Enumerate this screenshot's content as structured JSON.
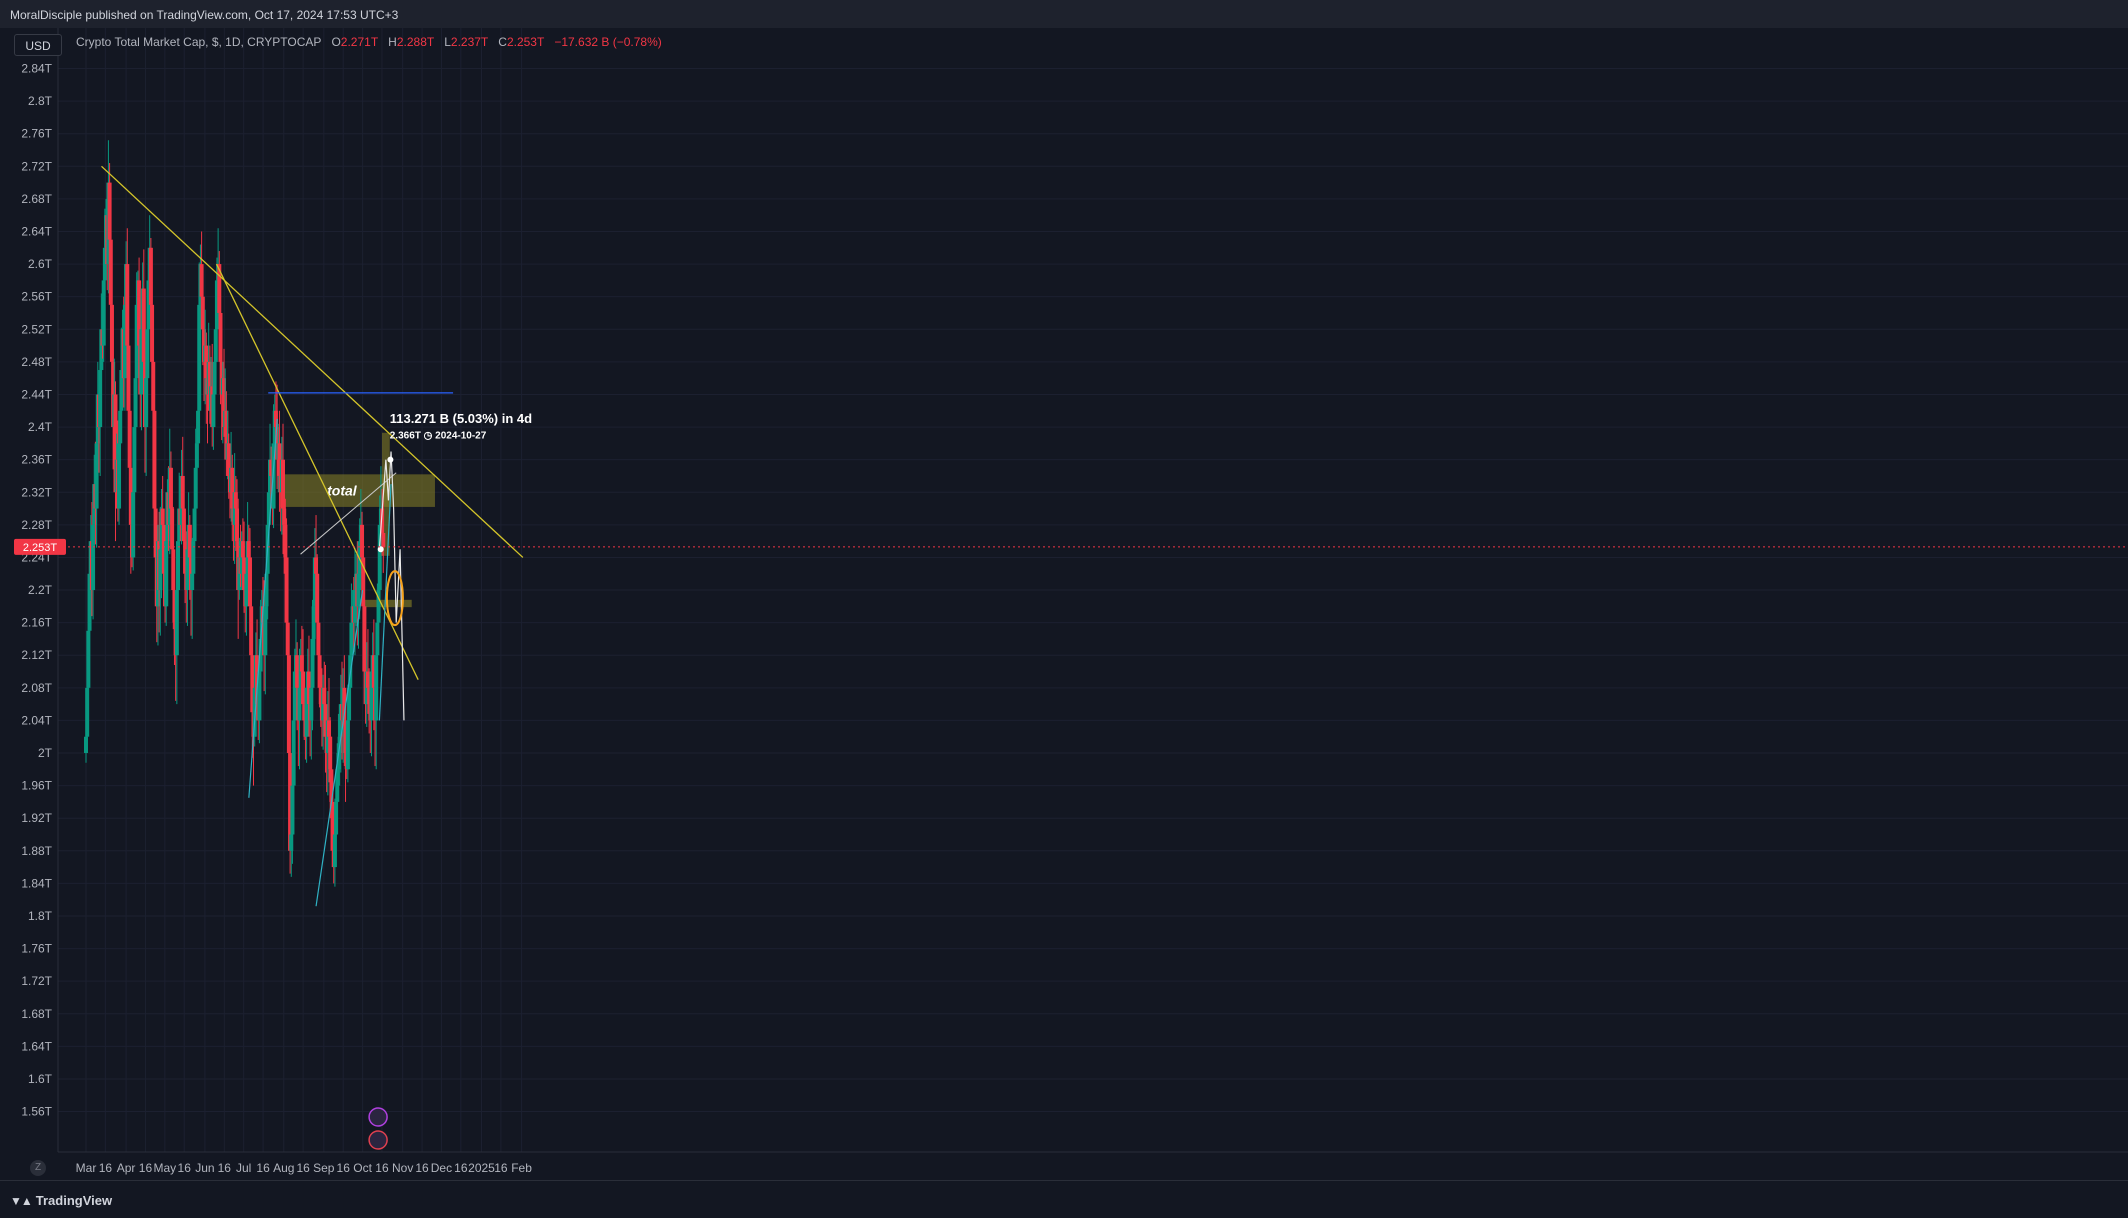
{
  "header": {
    "publisher": "MoralDisciple published on TradingView.com, Oct 17, 2024 17:53 UTC+3"
  },
  "toolbar": {
    "currency": "USD"
  },
  "legend": {
    "symbol": "Crypto Total Market Cap, $, 1D, CRYPTOCAP",
    "open_label": "O",
    "open": "2.271T",
    "high_label": "H",
    "high": "2.288T",
    "low_label": "L",
    "low": "2.237T",
    "close_label": "C",
    "close": "2.253T",
    "change": "−17.632 B (−0.78%)"
  },
  "footer": {
    "brand": "TradingView",
    "zoom_icon": "auto-scale-icon"
  },
  "colors": {
    "background": "#131722",
    "up": "#089981",
    "down": "#f23645",
    "trendline": "#d4c52a",
    "channel": "#2fb2c4",
    "resistance": "#2962ff",
    "zone": "#8a8426",
    "current_price": "#f23645"
  },
  "chart_data": {
    "type": "candlestick",
    "title": "Crypto Total Market Cap, $, 1D, CRYPTOCAP",
    "ylabel": "",
    "xlabel": "",
    "ylim": [
      1.53,
      2.875
    ],
    "yticks": [
      "2.84T",
      "2.8T",
      "2.76T",
      "2.72T",
      "2.68T",
      "2.64T",
      "2.6T",
      "2.56T",
      "2.52T",
      "2.48T",
      "2.44T",
      "2.4T",
      "2.36T",
      "2.32T",
      "2.28T",
      "2.24T",
      "2.2T",
      "2.16T",
      "2.12T",
      "2.08T",
      "2.04T",
      "2T",
      "1.96T",
      "1.92T",
      "1.88T",
      "1.84T",
      "1.8T",
      "1.76T",
      "1.72T",
      "1.68T",
      "1.64T",
      "1.6T",
      "1.56T"
    ],
    "xticks": [
      {
        "label": "Mar",
        "date": "2024-03-01"
      },
      {
        "label": "16",
        "date": "2024-03-16"
      },
      {
        "label": "Apr",
        "date": "2024-04-01"
      },
      {
        "label": "16",
        "date": "2024-04-16"
      },
      {
        "label": "May",
        "date": "2024-05-01"
      },
      {
        "label": "16",
        "date": "2024-05-16"
      },
      {
        "label": "Jun",
        "date": "2024-06-01"
      },
      {
        "label": "16",
        "date": "2024-06-16"
      },
      {
        "label": "Jul",
        "date": "2024-07-01"
      },
      {
        "label": "16",
        "date": "2024-07-16"
      },
      {
        "label": "Aug",
        "date": "2024-08-01"
      },
      {
        "label": "16",
        "date": "2024-08-16"
      },
      {
        "label": "Sep",
        "date": "2024-09-01"
      },
      {
        "label": "16",
        "date": "2024-09-16"
      },
      {
        "label": "Oct",
        "date": "2024-10-01"
      },
      {
        "label": "16",
        "date": "2024-10-16"
      },
      {
        "label": "Nov",
        "date": "2024-11-01"
      },
      {
        "label": "16",
        "date": "2024-11-16"
      },
      {
        "label": "Dec",
        "date": "2024-12-01"
      },
      {
        "label": "16",
        "date": "2024-12-16"
      },
      {
        "label": "2025",
        "date": "2025-01-01"
      },
      {
        "label": "16",
        "date": "2025-01-16"
      },
      {
        "label": "Feb",
        "date": "2025-02-01"
      }
    ],
    "closes": [
      2.02,
      2.08,
      2.15,
      2.22,
      2.26,
      2.2,
      2.28,
      2.33,
      2.3,
      2.38,
      2.44,
      2.4,
      2.47,
      2.52,
      2.5,
      2.58,
      2.62,
      2.66,
      2.6,
      2.7,
      2.63,
      2.55,
      2.48,
      2.4,
      2.44,
      2.32,
      2.36,
      2.3,
      2.38,
      2.42,
      2.47,
      2.52,
      2.46,
      2.55,
      2.6,
      2.5,
      2.42,
      2.35,
      2.28,
      2.24,
      2.32,
      2.4,
      2.46,
      2.55,
      2.58,
      2.5,
      2.44,
      2.52,
      2.57,
      2.48,
      2.4,
      2.46,
      2.52,
      2.58,
      2.62,
      2.55,
      2.48,
      2.42,
      2.3,
      2.24,
      2.18,
      2.26,
      2.2,
      2.25,
      2.3,
      2.28,
      2.22,
      2.18,
      2.26,
      2.32,
      2.28,
      2.35,
      2.3,
      2.25,
      2.2,
      2.16,
      2.12,
      2.2,
      2.26,
      2.3,
      2.28,
      2.34,
      2.3,
      2.26,
      2.22,
      2.2,
      2.25,
      2.28,
      2.24,
      2.2,
      2.22,
      2.26,
      2.3,
      2.35,
      2.38,
      2.42,
      2.55,
      2.6,
      2.56,
      2.52,
      2.48,
      2.5,
      2.46,
      2.44,
      2.48,
      2.42,
      2.45,
      2.4,
      2.44,
      2.48,
      2.52,
      2.58,
      2.6,
      2.54,
      2.48,
      2.44,
      2.46,
      2.4,
      2.42,
      2.36,
      2.38,
      2.34,
      2.32,
      2.35,
      2.3,
      2.28,
      2.32,
      2.3,
      2.26,
      2.2,
      2.24,
      2.22,
      2.26,
      2.24,
      2.2,
      2.18,
      2.22,
      2.26,
      2.24,
      2.18,
      2.12,
      2.05,
      2.02,
      2.08,
      2.12,
      2.06,
      2.04,
      2.1,
      2.14,
      2.18,
      2.16,
      2.12,
      2.18,
      2.22,
      2.28,
      2.32,
      2.36,
      2.34,
      2.3,
      2.38,
      2.42,
      2.4,
      2.36,
      2.38,
      2.34,
      2.32,
      2.36,
      2.3,
      2.28,
      2.24,
      2.16,
      2.12,
      2.0,
      1.88,
      1.9,
      1.96,
      2.04,
      2.1,
      2.12,
      2.08,
      2.04,
      2.08,
      2.12,
      2.1,
      2.06,
      2.04,
      2.02,
      2.08,
      2.1,
      2.06,
      2.04,
      2.08,
      2.14,
      2.18,
      2.24,
      2.22,
      2.16,
      2.12,
      2.08,
      2.06,
      2.04,
      2.08,
      2.06,
      2.02,
      2.0,
      2.04,
      2.02,
      1.98,
      1.94,
      1.88,
      1.86,
      1.9,
      1.94,
      1.98,
      2.0,
      2.02,
      2.06,
      2.04,
      2.08,
      2.04,
      2.0,
      1.98,
      2.04,
      2.08,
      2.12,
      2.16,
      2.18,
      2.16,
      2.2,
      2.22,
      2.18,
      2.22,
      2.26,
      2.28,
      2.24,
      2.18,
      2.1,
      2.06,
      2.1,
      2.08,
      2.06,
      2.04,
      2.1,
      2.12,
      2.08,
      2.04,
      2.12,
      2.16,
      2.2,
      2.28,
      2.3,
      2.27,
      2.253
    ],
    "series": [
      {
        "name": "",
        "type": "trendline",
        "color": "#d4c52a",
        "points": [
          [
            "2024-03-13",
            2.72
          ],
          [
            "2025-02-02",
            2.24
          ]
        ]
      },
      {
        "name": "",
        "type": "trendline",
        "color": "#d4c52a",
        "points": [
          [
            "2024-06-10",
            2.6
          ],
          [
            "2024-11-13",
            2.09
          ]
        ]
      },
      {
        "name": "",
        "type": "horizontal",
        "color": "#2962ff",
        "y": 2.442,
        "from": "2024-07-20",
        "to": "2024-12-10"
      }
    ],
    "annotations": [
      {
        "text": "total",
        "type": "zone",
        "y_from": 2.302,
        "y_to": 2.342
      },
      {
        "text": "113.271 B (5.03%) in 4d",
        "type": "measure"
      },
      {
        "text": "2.366T",
        "type": "measure-price"
      },
      {
        "text": "2024-10-27",
        "type": "measure-date"
      }
    ],
    "current_price": "2.253T",
    "grid": true,
    "legend_position": "top-left"
  }
}
